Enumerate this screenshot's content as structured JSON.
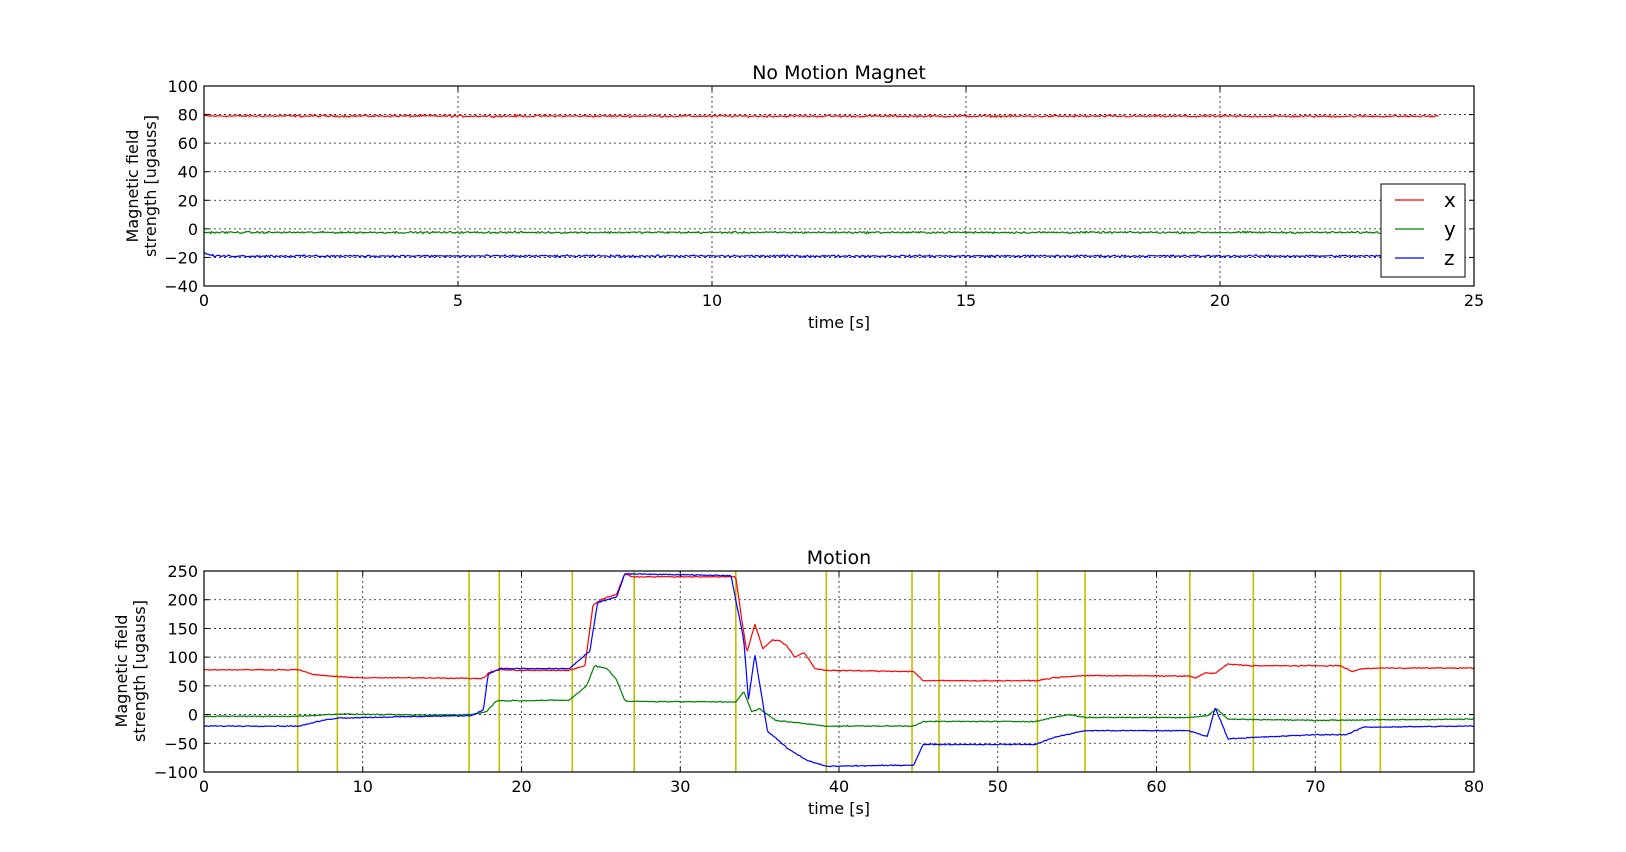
{
  "chart_data": [
    {
      "type": "line",
      "title": "No Motion Magnet",
      "xlabel": "time [s]",
      "ylabel": [
        "Magnetic field",
        "strength [ugauss]"
      ],
      "xlim": [
        0,
        25
      ],
      "ylim": [
        -40,
        100
      ],
      "xticks": [
        0,
        5,
        10,
        15,
        20,
        25
      ],
      "yticks": [
        -40,
        -20,
        0,
        20,
        40,
        60,
        80,
        100
      ],
      "grid": true,
      "legend_position": "lower-right",
      "x_end": 24.3,
      "series": [
        {
          "name": "x",
          "color": "#ff0000",
          "x": [
            0,
            24.3
          ],
          "y": [
            79,
            78.8
          ]
        },
        {
          "name": "y",
          "color": "#008000",
          "x": [
            0,
            24.3
          ],
          "y": [
            -2.5,
            -2.5
          ]
        },
        {
          "name": "z",
          "color": "#0000ff",
          "x": [
            0,
            0.2,
            24.3
          ],
          "y": [
            -17,
            -19,
            -19
          ]
        }
      ]
    },
    {
      "type": "line",
      "title": "Motion",
      "xlabel": "time [s]",
      "ylabel": [
        "Magnetic field",
        "strength [ugauss]"
      ],
      "xlim": [
        0,
        80
      ],
      "ylim": [
        -100,
        250
      ],
      "xticks": [
        0,
        10,
        20,
        30,
        40,
        50,
        60,
        70,
        80
      ],
      "yticks": [
        -100,
        -50,
        0,
        50,
        100,
        150,
        200,
        250
      ],
      "grid": true,
      "markers": {
        "color": "#bfbf00",
        "x": [
          5.9,
          8.4,
          16.7,
          18.6,
          23.2,
          27.1,
          33.5,
          39.2,
          44.6,
          46.3,
          52.5,
          55.5,
          62.1,
          66.1,
          71.6,
          74.1
        ]
      },
      "series": [
        {
          "name": "x",
          "color": "#ff0000",
          "x": [
            0,
            6,
            6.8,
            8.4,
            10,
            14,
            16.8,
            17.6,
            18,
            18.6,
            20,
            23,
            24,
            24.5,
            25,
            26,
            26.5,
            27,
            33.5,
            33.9,
            34.2,
            34.7,
            35.2,
            35.8,
            36.3,
            36.7,
            37.2,
            37.8,
            38.5,
            39.2,
            44.7,
            45.3,
            52.4,
            53.5,
            55.5,
            62,
            62.5,
            63,
            63.7,
            64.5,
            65,
            66,
            71.6,
            72.3,
            73,
            74.2,
            80
          ],
          "y": [
            78,
            78,
            70,
            66,
            64,
            64,
            63,
            63,
            74,
            78,
            77,
            77,
            85,
            190,
            200,
            210,
            245,
            240,
            240,
            160,
            108,
            158,
            115,
            130,
            128,
            120,
            100,
            108,
            80,
            77,
            75,
            59,
            59,
            64,
            68,
            67,
            64,
            72,
            72,
            88,
            87,
            85,
            85,
            75,
            80,
            81,
            81
          ]
        },
        {
          "name": "y",
          "color": "#008000",
          "x": [
            0,
            6,
            8.4,
            14,
            16.8,
            17.8,
            18.4,
            23,
            24.1,
            24.6,
            25.4,
            26,
            26.5,
            26.7,
            33.5,
            34,
            34.5,
            35,
            36,
            39.2,
            44.7,
            45.3,
            52.4,
            53.5,
            54.5,
            55.5,
            62,
            63.2,
            63.8,
            64.5,
            70,
            80
          ],
          "y": [
            -3,
            -3,
            1,
            -1,
            0,
            5,
            24,
            25,
            50,
            85,
            80,
            60,
            25,
            23,
            22,
            40,
            5,
            10,
            -10,
            -20,
            -20,
            -12,
            -12,
            -5,
            0,
            -5,
            -5,
            -2,
            10,
            -8,
            -10,
            -8
          ]
        },
        {
          "name": "z",
          "color": "#0000ff",
          "x": [
            0,
            6,
            7.5,
            8.4,
            14,
            16.8,
            17.6,
            17.9,
            18.6,
            23,
            24.3,
            24.8,
            26,
            26.5,
            33.2,
            34.0,
            34.3,
            34.7,
            35.5,
            36,
            36.8,
            38,
            39.2,
            44.7,
            45.3,
            52.4,
            53.5,
            55.5,
            62,
            63.2,
            63.7,
            64.5,
            70,
            72,
            73,
            80
          ],
          "y": [
            -20,
            -20,
            -10,
            -6,
            -3,
            -2,
            8,
            70,
            80,
            80,
            110,
            195,
            205,
            245,
            242,
            130,
            26,
            105,
            -30,
            -40,
            -60,
            -80,
            -90,
            -88,
            -52,
            -52,
            -40,
            -28,
            -28,
            -38,
            12,
            -42,
            -35,
            -35,
            -22,
            -20
          ]
        }
      ]
    }
  ]
}
